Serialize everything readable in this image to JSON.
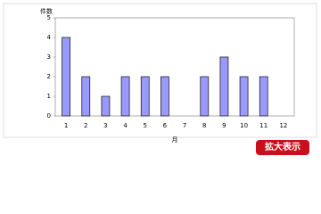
{
  "chart_data": {
    "type": "bar",
    "y_label": "件数",
    "x_label": "月",
    "categories": [
      "1",
      "2",
      "3",
      "4",
      "5",
      "6",
      "7",
      "8",
      "9",
      "10",
      "11",
      "12"
    ],
    "values": [
      4,
      2,
      1,
      2,
      2,
      2,
      0,
      2,
      3,
      2,
      2,
      0
    ],
    "color": "#9999ff",
    "ylim": [
      0,
      5
    ],
    "yticks": [
      0,
      1,
      2,
      3,
      4,
      5
    ],
    "grid": false
  },
  "button_label": "拡大表示"
}
